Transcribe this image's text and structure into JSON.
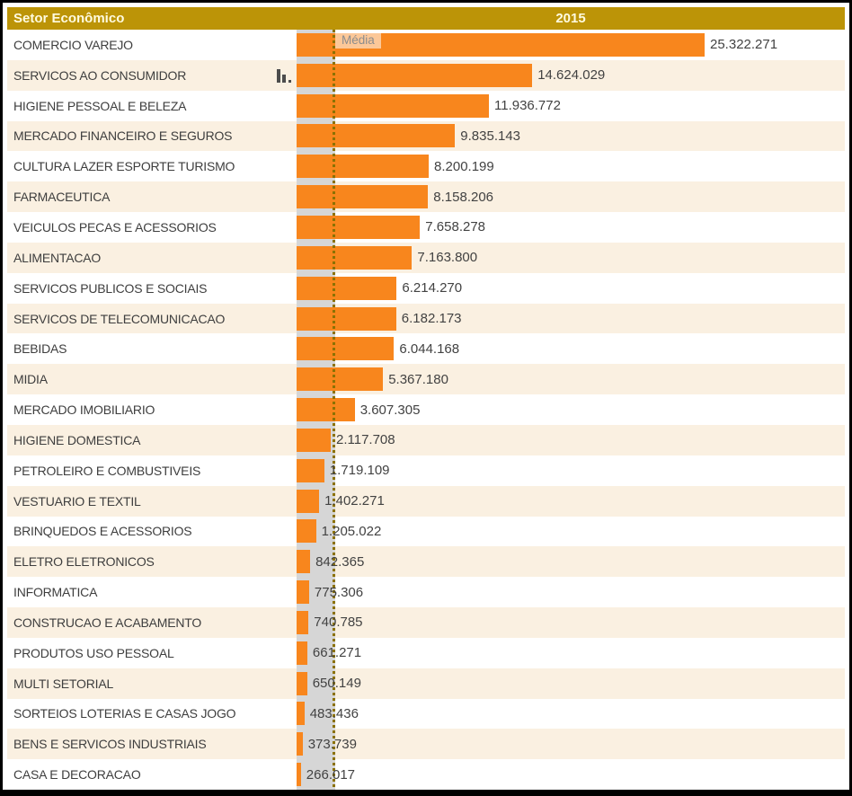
{
  "header": {
    "sector_column": "Setor Econômico",
    "year_column": "2015"
  },
  "icons": {
    "row_icon": "mini-bar-chart-icon"
  },
  "colors": {
    "bar": "#F8861D",
    "header_bg": "#BC9407",
    "header_text": "#FFFBE0",
    "stripe_alt": "#FAF0E1",
    "band": "#D6D6D6",
    "media_line": "#8B7103"
  },
  "chart_data": {
    "type": "bar",
    "orientation": "horizontal",
    "title": "",
    "column_header": "Setor Econômico",
    "series_label": "2015",
    "legend": "none",
    "grid": false,
    "xlim": [
      0,
      25322271
    ],
    "reference_line": {
      "label": "Média"
    },
    "categories": [
      "COMERCIO VAREJO",
      "SERVICOS AO CONSUMIDOR",
      "HIGIENE PESSOAL E BELEZA",
      "MERCADO FINANCEIRO E SEGUROS",
      "CULTURA LAZER ESPORTE TURISMO",
      "FARMACEUTICA",
      "VEICULOS PECAS E ACESSORIOS",
      "ALIMENTACAO",
      "SERVICOS PUBLICOS E SOCIAIS",
      "SERVICOS DE TELECOMUNICACAO",
      "BEBIDAS",
      "MIDIA",
      "MERCADO IMOBILIARIO",
      "HIGIENE DOMESTICA",
      "PETROLEIRO E COMBUSTIVEIS",
      "VESTUARIO E TEXTIL",
      "BRINQUEDOS E ACESSORIOS",
      "ELETRO ELETRONICOS",
      "INFORMATICA",
      "CONSTRUCAO E ACABAMENTO",
      "PRODUTOS USO PESSOAL",
      "MULTI SETORIAL",
      "SORTEIOS LOTERIAS E CASAS JOGO",
      "BENS E SERVICOS INDUSTRIAIS",
      "CASA E DECORACAO"
    ],
    "values": [
      25322271,
      14624029,
      11936772,
      9835143,
      8200199,
      8158206,
      7658278,
      7163800,
      6214270,
      6182173,
      6044168,
      5367180,
      3607305,
      2117708,
      1719109,
      1402271,
      1205022,
      842365,
      775306,
      740785,
      661271,
      650149,
      483436,
      373739,
      266017
    ],
    "value_labels": [
      "25.322.271",
      "14.624.029",
      "11.936.772",
      "9.835.143",
      "8.200.199",
      "8.158.206",
      "7.658.278",
      "7.163.800",
      "6.214.270",
      "6.182.173",
      "6.044.168",
      "5.367.180",
      "3.607.305",
      "2.117.708",
      "1.719.109",
      "1.402.271",
      "1.205.022",
      "842.365",
      "775.306",
      "740.785",
      "661.271",
      "650.149",
      "483.436",
      "373.739",
      "266.017"
    ]
  }
}
